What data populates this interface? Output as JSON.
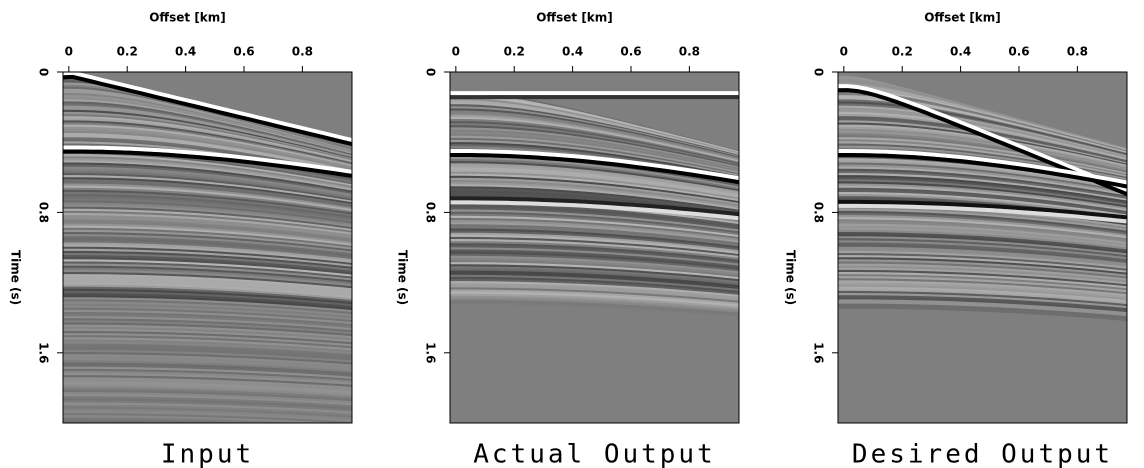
{
  "chart_data": [
    {
      "type": "image",
      "title": "Input",
      "xlabel": "Offset [km]",
      "ylabel": "Time (s)",
      "xlim": [
        -0.02,
        0.97
      ],
      "ylim": [
        0,
        2
      ],
      "xticks": [
        0,
        0.2,
        0.4,
        0.6,
        0.8
      ],
      "yticks": [
        0,
        0.8,
        1.6
      ]
    },
    {
      "type": "image",
      "title": "Actual Output",
      "xlabel": "Offset [km]",
      "ylabel": "Time (s)",
      "xlim": [
        -0.02,
        0.97
      ],
      "ylim": [
        0,
        2
      ],
      "xticks": [
        0,
        0.2,
        0.4,
        0.6,
        0.8
      ],
      "yticks": [
        0,
        0.8,
        1.6
      ]
    },
    {
      "type": "image",
      "title": "Desired Output",
      "xlabel": "Offset [km]",
      "ylabel": "Time (s)",
      "xlim": [
        -0.02,
        0.97
      ],
      "ylim": [
        0,
        2
      ],
      "xticks": [
        0,
        0.2,
        0.4,
        0.6,
        0.8
      ],
      "yticks": [
        0,
        0.8,
        1.6
      ]
    }
  ]
}
